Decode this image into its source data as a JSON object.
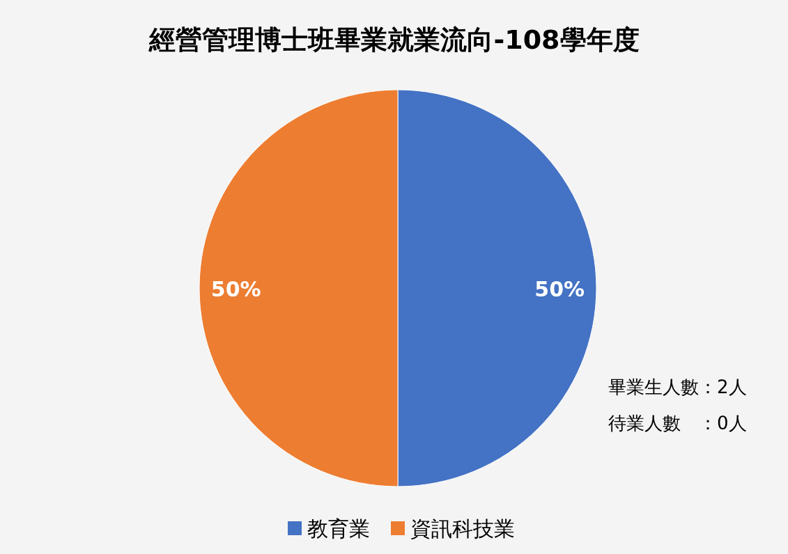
{
  "chart_data": {
    "type": "pie",
    "title": "經營管理博士班畢業就業流向-108學年度",
    "categories": [
      "教育業",
      "資訊科技業"
    ],
    "values": [
      50,
      50
    ],
    "colors": [
      "#4472c4",
      "#ed7d31"
    ],
    "value_labels": [
      "50%",
      "50%"
    ],
    "legend": "bottom",
    "annotations": [
      "畢業生人數：2人",
      "待業人數　：0人"
    ]
  }
}
